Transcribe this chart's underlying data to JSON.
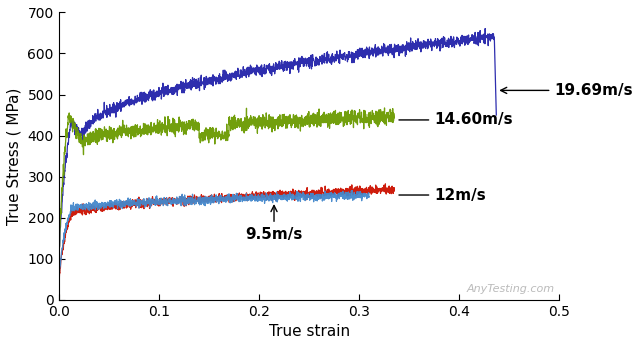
{
  "xlabel": "True strain",
  "ylabel": "True Stress ( MPa)",
  "xlim": [
    0,
    0.5
  ],
  "ylim": [
    0,
    700
  ],
  "xticks": [
    0,
    0.1,
    0.2,
    0.3,
    0.4,
    0.5
  ],
  "yticks": [
    0,
    100,
    200,
    300,
    400,
    500,
    600,
    700
  ],
  "background_color": "#ffffff",
  "curves": [
    {
      "label": "19.69m/s",
      "color": "#2222aa"
    },
    {
      "label": "14.60m/s",
      "color": "#6a9a00"
    },
    {
      "label": "12m/s",
      "color": "#cc1100"
    },
    {
      "label": "9.5m/s",
      "color": "#4488cc"
    }
  ],
  "watermark": "AnyTesting.com",
  "watermark_color": "#bbbbbb",
  "figsize": [
    6.4,
    3.46
  ],
  "dpi": 100
}
